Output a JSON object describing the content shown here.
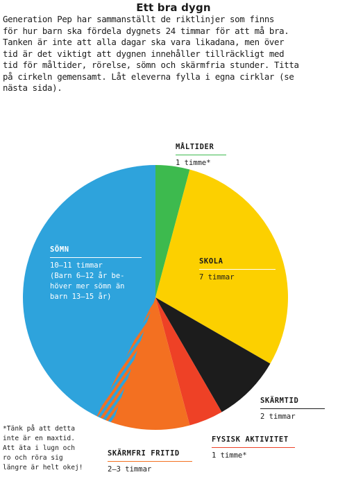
{
  "title": "Ett bra dygn",
  "intro_lines": [
    "Generation Pep har sammanställt de riktlinjer som finns",
    "för hur barn ska fördela dygnets 24 timmar för att må bra.",
    "Tanken är inte att alla dagar ska vara likadana, men över",
    "tid är det viktigt att dygnen innehåller tillräckligt med",
    "tid för måltider, rörelse, sömn och skärmfria stunder. Titta",
    "på cirkeln gemensamt. Låt eleverna fylla i egna cirklar (se",
    "nästa sida)."
  ],
  "chart_data": {
    "type": "pie",
    "unit": "timmar",
    "total": 24,
    "start": "top, clockwise",
    "slices": [
      {
        "label": "MÅLTIDER",
        "text": "1 timme*",
        "value": 1,
        "color": "#3dba4e",
        "line_color": "#3dba4e"
      },
      {
        "label": "SKOLA",
        "text": "7 timmar",
        "value": 7,
        "color": "#fcd000",
        "line_color": "#ffffff"
      },
      {
        "label": "SKÄRMTID",
        "text": "2 timmar",
        "value": 2,
        "color": "#1c1c1c",
        "line_color": "#1a1a1a"
      },
      {
        "label": "FYSISK AKTIVITET",
        "text": "1 timme*",
        "value": 1,
        "color": "#ee4126",
        "line_color": "#ee4126"
      },
      {
        "label": "SKÄRMFRI FRITID",
        "text": "2–3 timmar",
        "value": 2.5,
        "color": "#f37021",
        "line_color": "#f37021"
      },
      {
        "label": "SÖMN",
        "text_lines": [
          "10–11 timmar",
          "(Barn 6–12 år be-",
          "höver mer sömn än",
          "barn 13–15 år)"
        ],
        "value": 10.5,
        "color": "#2ea3dc",
        "line_color": "#ffffff"
      }
    ],
    "hatched_overlap": {
      "between": [
        "SKÄRMFRI FRITID",
        "SÖMN"
      ],
      "value": 0.5
    }
  },
  "note_lines": [
    "*Tänk på att detta",
    "inte är en maxtid.",
    "Att äta i lugn och",
    "ro och röra sig",
    "längre är helt okej!"
  ]
}
